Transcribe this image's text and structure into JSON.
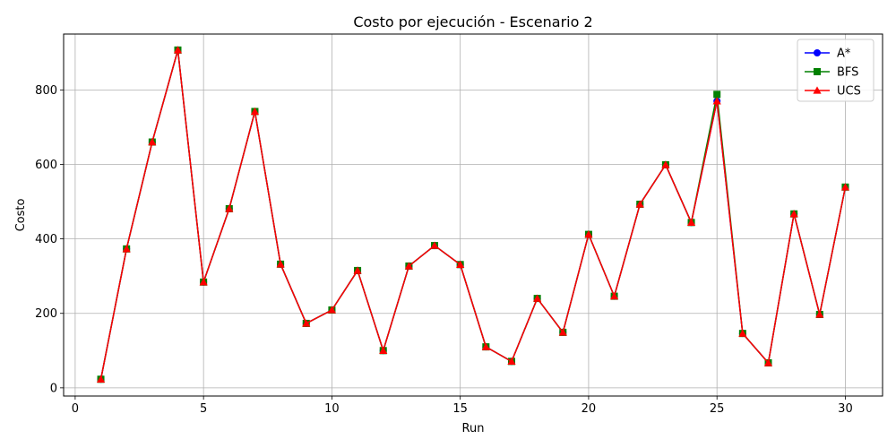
{
  "chart_data": {
    "type": "line",
    "title": "Costo por ejecución - Escenario 2",
    "xlabel": "Run",
    "ylabel": "Costo",
    "xlim": [
      -0.45,
      31.45
    ],
    "ylim": [
      -22,
      950
    ],
    "xticks": [
      0,
      5,
      10,
      15,
      20,
      25,
      30
    ],
    "yticks": [
      0,
      200,
      400,
      600,
      800
    ],
    "grid": true,
    "legend_position": "top-right",
    "x": [
      1,
      2,
      3,
      4,
      5,
      6,
      7,
      8,
      9,
      10,
      11,
      12,
      13,
      14,
      15,
      16,
      17,
      18,
      19,
      20,
      21,
      22,
      23,
      24,
      25,
      26,
      27,
      28,
      29,
      30
    ],
    "series": [
      {
        "name": "A*",
        "color": "#0000ff",
        "marker": "circle",
        "values": [
          23,
          373,
          660,
          907,
          284,
          481,
          742,
          332,
          173,
          209,
          315,
          100,
          327,
          382,
          331,
          110,
          71,
          240,
          149,
          412,
          246,
          493,
          599,
          444,
          770,
          146,
          67,
          467,
          197,
          539
        ]
      },
      {
        "name": "BFS",
        "color": "#008000",
        "marker": "square",
        "values": [
          23,
          373,
          660,
          907,
          284,
          481,
          742,
          332,
          173,
          209,
          315,
          100,
          327,
          382,
          331,
          110,
          71,
          240,
          149,
          412,
          246,
          493,
          599,
          444,
          788,
          146,
          67,
          467,
          197,
          539
        ]
      },
      {
        "name": "UCS",
        "color": "#ff0000",
        "marker": "triangle",
        "values": [
          23,
          373,
          660,
          907,
          284,
          481,
          742,
          332,
          173,
          209,
          315,
          100,
          327,
          382,
          331,
          110,
          71,
          240,
          149,
          412,
          246,
          493,
          599,
          444,
          770,
          146,
          67,
          467,
          197,
          539
        ]
      }
    ]
  }
}
